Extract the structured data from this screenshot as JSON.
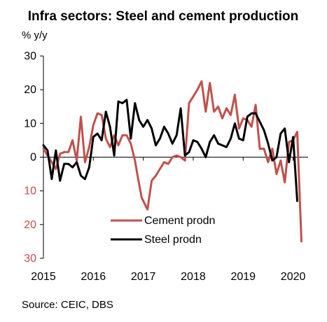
{
  "chart_data": {
    "type": "line",
    "title": "Infra sectors: Steel and cement production",
    "ylabel": "% y/y",
    "source": "Source: CEIC, DBS",
    "ylim": [
      -30,
      30
    ],
    "yticks": [
      {
        "value": 30,
        "label": "30"
      },
      {
        "value": 20,
        "label": "20"
      },
      {
        "value": 10,
        "label": "10"
      },
      {
        "value": 0,
        "label": "0"
      },
      {
        "value": -10,
        "label": "10"
      },
      {
        "value": -20,
        "label": "20"
      },
      {
        "value": -30,
        "label": "30"
      }
    ],
    "xticks": [
      {
        "value": 2015,
        "label": "2015"
      },
      {
        "value": 2016,
        "label": "2016"
      },
      {
        "value": 2017,
        "label": "2017"
      },
      {
        "value": 2018,
        "label": "2018"
      },
      {
        "value": 2019,
        "label": "2019"
      },
      {
        "value": 2020,
        "label": "2020"
      }
    ],
    "xlim": [
      2015,
      2020.3
    ],
    "grid": false,
    "legend": "bottom-center",
    "series": [
      {
        "name": "Cement prodn",
        "color": "#c0504d",
        "points": [
          [
            2015.0,
            2.5
          ],
          [
            2015.083,
            0.5
          ],
          [
            2015.167,
            -1.5
          ],
          [
            2015.25,
            -3.5
          ],
          [
            2015.333,
            1.0
          ],
          [
            2015.417,
            1.5
          ],
          [
            2015.5,
            1.5
          ],
          [
            2015.583,
            5.0
          ],
          [
            2015.667,
            -1.0
          ],
          [
            2015.75,
            12.0
          ],
          [
            2015.833,
            -1.5
          ],
          [
            2015.917,
            3.0
          ],
          [
            2016.0,
            9.5
          ],
          [
            2016.083,
            13.0
          ],
          [
            2016.167,
            12.5
          ],
          [
            2016.25,
            5.5
          ],
          [
            2016.333,
            3.0
          ],
          [
            2016.417,
            6.5
          ],
          [
            2016.5,
            3.5
          ],
          [
            2016.583,
            6.5
          ],
          [
            2016.667,
            6.5
          ],
          [
            2016.75,
            4.0
          ],
          [
            2016.833,
            -1.0
          ],
          [
            2016.917,
            -8.0
          ],
          [
            2016.967,
            -12.0
          ],
          [
            2017.083,
            -15.5
          ],
          [
            2017.167,
            -7.0
          ],
          [
            2017.25,
            -5.5
          ],
          [
            2017.333,
            -3.5
          ],
          [
            2017.417,
            -1.5
          ],
          [
            2017.5,
            -2.0
          ],
          [
            2017.583,
            0.0
          ],
          [
            2017.667,
            0.5
          ],
          [
            2017.75,
            0.0
          ],
          [
            2017.833,
            -1.0
          ],
          [
            2017.917,
            16.0
          ],
          [
            2018.0,
            18.0
          ],
          [
            2018.083,
            20.0
          ],
          [
            2018.167,
            22.5
          ],
          [
            2018.25,
            13.5
          ],
          [
            2018.333,
            22.0
          ],
          [
            2018.417,
            13.5
          ],
          [
            2018.5,
            15.0
          ],
          [
            2018.583,
            11.5
          ],
          [
            2018.667,
            14.5
          ],
          [
            2018.75,
            12.5
          ],
          [
            2018.833,
            18.5
          ],
          [
            2018.917,
            8.5
          ],
          [
            2019.0,
            11.5
          ],
          [
            2019.083,
            11.0
          ],
          [
            2019.167,
            9.0
          ],
          [
            2019.25,
            15.5
          ],
          [
            2019.333,
            2.5
          ],
          [
            2019.417,
            2.5
          ],
          [
            2019.5,
            -1.5
          ],
          [
            2019.583,
            2.5
          ],
          [
            2019.667,
            -5.0
          ],
          [
            2019.75,
            -1.0
          ],
          [
            2019.833,
            -7.5
          ],
          [
            2019.917,
            4.5
          ],
          [
            2020.0,
            5.0
          ],
          [
            2020.083,
            7.5
          ],
          [
            2020.167,
            -25.0
          ]
        ]
      },
      {
        "name": "Steel prodn",
        "color": "#000000",
        "points": [
          [
            2015.0,
            3.5
          ],
          [
            2015.083,
            2.0
          ],
          [
            2015.167,
            -6.5
          ],
          [
            2015.25,
            2.0
          ],
          [
            2015.333,
            -7.0
          ],
          [
            2015.417,
            -2.0
          ],
          [
            2015.5,
            -2.0
          ],
          [
            2015.583,
            -3.0
          ],
          [
            2015.667,
            -1.5
          ],
          [
            2015.75,
            -5.5
          ],
          [
            2015.833,
            -6.5
          ],
          [
            2015.917,
            -3.0
          ],
          [
            2016.0,
            6.0
          ],
          [
            2016.083,
            7.0
          ],
          [
            2016.167,
            5.0
          ],
          [
            2016.25,
            13.5
          ],
          [
            2016.333,
            9.0
          ],
          [
            2016.417,
            0.5
          ],
          [
            2016.5,
            16.5
          ],
          [
            2016.583,
            16.0
          ],
          [
            2016.667,
            17.0
          ],
          [
            2016.75,
            5.5
          ],
          [
            2016.833,
            16.0
          ],
          [
            2016.917,
            11.0
          ],
          [
            2017.0,
            9.0
          ],
          [
            2017.083,
            11.0
          ],
          [
            2017.167,
            8.5
          ],
          [
            2017.25,
            3.5
          ],
          [
            2017.333,
            5.5
          ],
          [
            2017.417,
            9.0
          ],
          [
            2017.5,
            7.0
          ],
          [
            2017.583,
            4.0
          ],
          [
            2017.667,
            6.5
          ],
          [
            2017.75,
            14.5
          ],
          [
            2017.833,
            0.5
          ],
          [
            2017.917,
            1.5
          ],
          [
            2018.0,
            5.0
          ],
          [
            2018.083,
            4.5
          ],
          [
            2018.167,
            2.5
          ],
          [
            2018.25,
            0.0
          ],
          [
            2018.333,
            4.5
          ],
          [
            2018.417,
            6.5
          ],
          [
            2018.5,
            4.0
          ],
          [
            2018.583,
            3.5
          ],
          [
            2018.667,
            3.0
          ],
          [
            2018.75,
            5.5
          ],
          [
            2018.833,
            10.0
          ],
          [
            2018.917,
            5.5
          ],
          [
            2019.0,
            5.0
          ],
          [
            2019.083,
            12.0
          ],
          [
            2019.167,
            13.0
          ],
          [
            2019.25,
            13.0
          ],
          [
            2019.333,
            10.5
          ],
          [
            2019.417,
            8.0
          ],
          [
            2019.5,
            4.0
          ],
          [
            2019.583,
            -1.0
          ],
          [
            2019.667,
            0.0
          ],
          [
            2019.75,
            7.0
          ],
          [
            2019.833,
            8.5
          ],
          [
            2019.917,
            -1.5
          ],
          [
            2020.0,
            6.0
          ],
          [
            2020.083,
            -13.0
          ]
        ]
      }
    ]
  }
}
